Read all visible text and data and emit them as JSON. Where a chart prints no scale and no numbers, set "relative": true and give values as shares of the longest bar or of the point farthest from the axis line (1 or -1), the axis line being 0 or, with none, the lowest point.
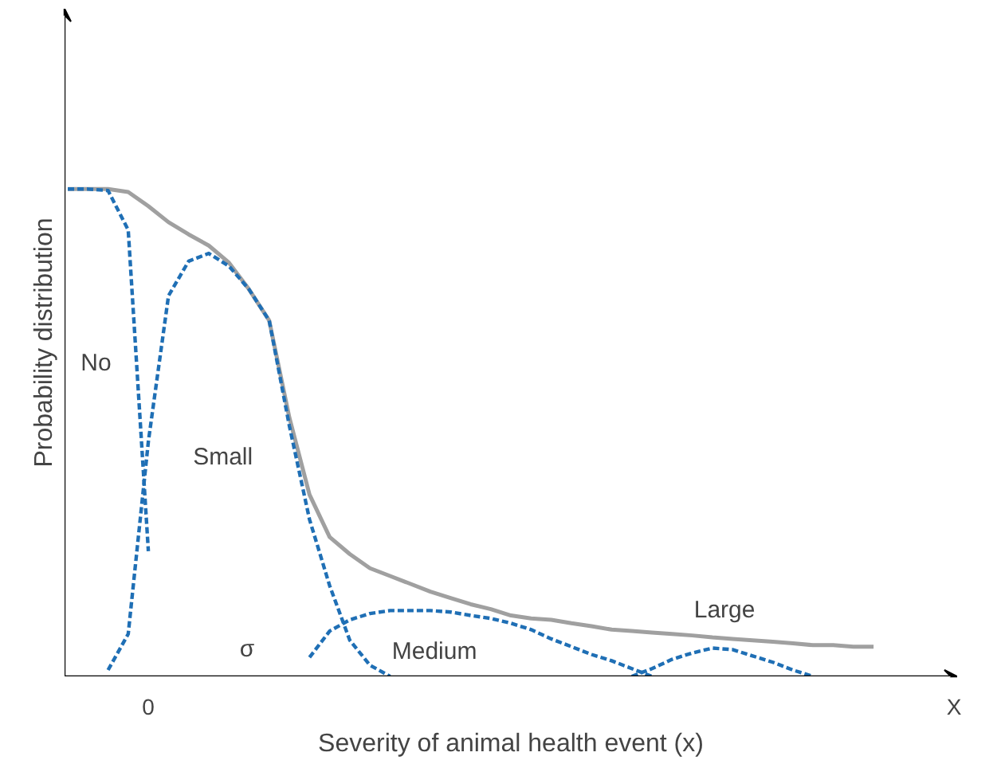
{
  "chart_data": {
    "type": "line",
    "relative": true,
    "xlabel": "Severity of animal health event (x)",
    "ylabel": "Probability distribution",
    "categories": [
      null,
      null,
      null,
      null,
      "0",
      null,
      null,
      null,
      null,
      null,
      null,
      null,
      null,
      null,
      null,
      null,
      null,
      null,
      null,
      null,
      null,
      null,
      null,
      null,
      null,
      null,
      null,
      null,
      null,
      null,
      null,
      null,
      null,
      null,
      null,
      null,
      null,
      null,
      null,
      null,
      null,
      null,
      null,
      null,
      "X"
    ],
    "series": [
      {
        "color": "#a0a0a0",
        "line_style": "solid",
        "values": [
          1.0,
          1.0,
          1.0,
          0.994,
          0.965,
          0.932,
          0.907,
          0.884,
          0.849,
          0.794,
          0.73,
          0.531,
          0.373,
          0.286,
          0.251,
          0.222,
          0.206,
          0.19,
          0.174,
          0.161,
          0.148,
          0.138,
          0.125,
          0.119,
          0.116,
          0.109,
          0.103,
          0.096,
          0.093,
          0.09,
          0.087,
          0.084,
          0.08,
          0.077,
          0.074,
          0.071,
          0.068,
          0.064,
          0.064,
          0.061,
          0.061,
          null,
          null,
          null,
          null
        ]
      },
      {
        "color": "#1f6fb5",
        "line_style": "dashed",
        "values": [
          1.0,
          1.0,
          0.997,
          0.916,
          0.257,
          null,
          null,
          null,
          null,
          null,
          null,
          null,
          null,
          null,
          null,
          null,
          null,
          null,
          null,
          null,
          null,
          null,
          null,
          null,
          null,
          null,
          null,
          null,
          null,
          null,
          null,
          null,
          null,
          null,
          null,
          null,
          null,
          null,
          null,
          null,
          null,
          null,
          null,
          null,
          null
        ]
      },
      {
        "color": "#1f6fb5",
        "line_style": "dashed",
        "values": [
          null,
          null,
          0.013,
          0.087,
          0.482,
          0.781,
          0.852,
          0.868,
          0.842,
          0.794,
          0.73,
          0.514,
          0.322,
          0.186,
          0.074,
          0.023,
          0,
          null,
          null,
          null,
          null,
          null,
          null,
          null,
          null,
          null,
          null,
          null,
          null,
          null,
          null,
          null,
          null,
          null,
          null,
          null,
          null,
          null,
          null,
          null,
          null,
          null,
          null,
          null,
          null
        ]
      },
      {
        "color": "#1f6fb5",
        "line_style": "dashed",
        "values": [
          null,
          null,
          null,
          null,
          null,
          null,
          null,
          null,
          null,
          null,
          null,
          null,
          0.039,
          0.093,
          0.116,
          0.129,
          0.135,
          0.135,
          0.135,
          0.132,
          0.125,
          0.119,
          0.109,
          0.096,
          0.077,
          0.061,
          0.045,
          0.032,
          0.016,
          0,
          null,
          null,
          null,
          null,
          null,
          null,
          null,
          null,
          null,
          null,
          null,
          null,
          null,
          null,
          null
        ]
      },
      {
        "color": "#1f6fb5",
        "line_style": "dashed",
        "values": [
          null,
          null,
          null,
          null,
          null,
          null,
          null,
          null,
          null,
          null,
          null,
          null,
          null,
          null,
          null,
          null,
          null,
          null,
          null,
          null,
          null,
          null,
          null,
          null,
          null,
          null,
          null,
          null,
          0,
          0.016,
          0.035,
          0.048,
          0.058,
          0.055,
          0.042,
          0.029,
          0.013,
          0,
          null,
          null,
          null,
          null,
          null,
          null,
          null
        ]
      }
    ],
    "annotations": [
      "No",
      "Small",
      "σ",
      "Medium",
      "Large"
    ]
  }
}
